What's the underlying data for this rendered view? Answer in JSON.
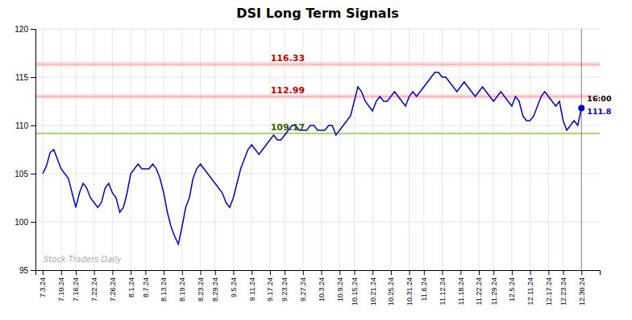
{
  "chart_data": {
    "type": "line",
    "title": "DSI Long Term Signals",
    "color": "#0000cc",
    "grid": true,
    "ylim": [
      95,
      120
    ],
    "yticks": [
      95,
      100,
      105,
      110,
      115,
      120
    ],
    "categories": [
      "7.3.24",
      null,
      null,
      null,
      null,
      "7.10.24",
      null,
      null,
      null,
      "7.16.24",
      null,
      null,
      null,
      null,
      "7.22.24",
      null,
      null,
      null,
      null,
      "7.26.24",
      null,
      null,
      null,
      null,
      "8.1.24",
      null,
      null,
      null,
      "8.7.24",
      null,
      null,
      null,
      null,
      "8.13.24",
      null,
      null,
      null,
      null,
      "8.19.24",
      null,
      null,
      null,
      null,
      "8.23.24",
      null,
      null,
      null,
      "8.29.24",
      null,
      null,
      null,
      null,
      "9.5.24",
      null,
      null,
      null,
      null,
      "9.11.24",
      null,
      null,
      null,
      null,
      "9.17.24",
      null,
      null,
      null,
      "9.23.24",
      null,
      null,
      null,
      null,
      "9.27.24",
      null,
      null,
      null,
      null,
      "10.3.24",
      null,
      null,
      null,
      null,
      "10.9.24",
      null,
      null,
      null,
      "10.15.24",
      null,
      null,
      null,
      null,
      "10.21.24",
      null,
      null,
      null,
      null,
      "10.25.24",
      null,
      null,
      null,
      null,
      "10.31.24",
      null,
      null,
      null,
      "11.6.24",
      null,
      null,
      null,
      null,
      "11.12.24",
      null,
      null,
      null,
      null,
      "11.18.24",
      null,
      null,
      null,
      null,
      "11.22.24",
      null,
      null,
      null,
      "11.29.24",
      null,
      null,
      null,
      null,
      "12.5.24",
      null,
      null,
      null,
      null,
      "12.11.24",
      null,
      null,
      null,
      null,
      "12.17.24",
      null,
      null,
      null,
      "12.23.24",
      null,
      null,
      null,
      null,
      "12.30.24"
    ],
    "values": [
      105.0,
      105.8,
      107.2,
      107.5,
      106.5,
      105.5,
      105.0,
      104.5,
      103.0,
      101.5,
      103.0,
      104.0,
      103.5,
      102.5,
      102.0,
      101.5,
      102.0,
      103.5,
      104.0,
      103.0,
      102.5,
      101.0,
      101.5,
      103.0,
      105.0,
      105.5,
      106.0,
      105.5,
      105.5,
      105.5,
      106.0,
      105.5,
      104.5,
      103.0,
      101.0,
      99.5,
      98.5,
      97.7,
      99.5,
      101.5,
      102.5,
      104.5,
      105.5,
      106.0,
      105.5,
      105.0,
      104.5,
      104.0,
      103.5,
      103.0,
      102.0,
      101.5,
      102.5,
      104.0,
      105.5,
      106.5,
      107.5,
      108.0,
      107.5,
      107.0,
      107.5,
      108.0,
      108.5,
      109.0,
      108.5,
      108.5,
      109.0,
      109.5,
      110.0,
      110.0,
      109.5,
      109.5,
      109.5,
      110.0,
      110.0,
      109.5,
      109.5,
      109.5,
      110.0,
      110.0,
      109.0,
      109.5,
      110.0,
      110.5,
      111.0,
      112.5,
      114.0,
      113.5,
      112.5,
      112.0,
      111.5,
      112.5,
      113.0,
      112.5,
      112.5,
      113.0,
      113.5,
      113.0,
      112.5,
      112.0,
      113.0,
      113.5,
      113.0,
      113.5,
      114.0,
      114.5,
      115.0,
      115.5,
      115.5,
      115.0,
      115.0,
      114.5,
      114.0,
      113.5,
      114.0,
      114.5,
      114.0,
      113.5,
      113.0,
      113.5,
      114.0,
      113.5,
      113.0,
      112.5,
      113.0,
      113.5,
      113.0,
      112.5,
      112.0,
      113.0,
      112.5,
      111.0,
      110.5,
      110.5,
      111.0,
      112.0,
      113.0,
      113.5,
      113.0,
      112.5,
      112.0,
      112.5,
      110.5,
      109.5,
      110.0,
      110.5,
      110.0,
      111.8
    ],
    "reference_lines": [
      {
        "value": 116.33,
        "label": "116.33",
        "color": "#ffaaaa",
        "label_color": "#cc0000",
        "band": 0.25
      },
      {
        "value": 112.99,
        "label": "112.99",
        "color": "#ffaaaa",
        "label_color": "#cc0000",
        "band": 0.25
      },
      {
        "value": 109.17,
        "label": "109.17",
        "color": "#88cc44",
        "label_color": "#336600"
      }
    ],
    "last_point": {
      "label": "16:00",
      "value": 111.8,
      "value_label": "111.8",
      "color": "#0000cc"
    },
    "watermark": "Stock Traders Daily"
  }
}
